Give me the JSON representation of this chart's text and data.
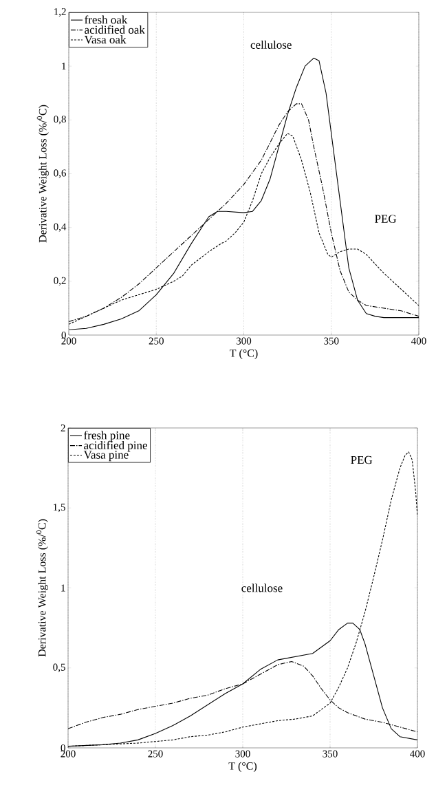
{
  "chart_data": [
    {
      "type": "line",
      "xlabel": "T (°C)",
      "ylabel": "Derivative Weight  Loss  (%/$^{0}$C)",
      "xlim": [
        200,
        400
      ],
      "ylim": [
        0,
        1.2
      ],
      "xticks": [
        200,
        250,
        300,
        350,
        400
      ],
      "yticks": [
        0,
        {
          "value": 0.2,
          "label": "0,2"
        },
        {
          "value": 0.4,
          "label": "0,4"
        },
        {
          "value": 0.6,
          "label": "0,6"
        },
        {
          "value": 0.8,
          "label": "0,8"
        },
        1,
        {
          "value": 1.2,
          "label": "1,2"
        }
      ],
      "grid": "x",
      "legend": "top left",
      "annotations": [
        "cellulose",
        "PEG"
      ],
      "series": [
        {
          "name": "fresh oak",
          "color": "#000000",
          "line_style": "solid",
          "x": [
            200,
            210,
            220,
            230,
            240,
            250,
            260,
            270,
            280,
            285,
            290,
            300,
            305,
            310,
            315,
            320,
            325,
            330,
            335,
            340,
            343,
            347,
            350,
            355,
            360,
            365,
            370,
            375,
            380,
            400
          ],
          "values": [
            0.02,
            0.025,
            0.04,
            0.06,
            0.09,
            0.15,
            0.23,
            0.34,
            0.44,
            0.46,
            0.46,
            0.455,
            0.46,
            0.5,
            0.58,
            0.7,
            0.82,
            0.92,
            1.0,
            1.03,
            1.02,
            0.9,
            0.75,
            0.5,
            0.25,
            0.13,
            0.08,
            0.07,
            0.065,
            0.065
          ]
        },
        {
          "name": "acidified oak",
          "color": "#000000",
          "line_style": "dashdot",
          "x": [
            200,
            210,
            220,
            230,
            240,
            250,
            260,
            270,
            280,
            290,
            300,
            310,
            320,
            325,
            330,
            333,
            337,
            340,
            345,
            350,
            355,
            360,
            365,
            370,
            380,
            390,
            400
          ],
          "values": [
            0.05,
            0.07,
            0.1,
            0.14,
            0.19,
            0.25,
            0.31,
            0.37,
            0.43,
            0.49,
            0.56,
            0.65,
            0.78,
            0.83,
            0.86,
            0.86,
            0.8,
            0.7,
            0.55,
            0.38,
            0.24,
            0.16,
            0.13,
            0.11,
            0.1,
            0.09,
            0.07
          ]
        },
        {
          "name": "Vasa oak",
          "color": "#000000",
          "line_style": "dashed",
          "x": [
            200,
            210,
            220,
            230,
            240,
            250,
            260,
            265,
            270,
            280,
            287,
            290,
            295,
            300,
            305,
            310,
            315,
            320,
            325,
            328,
            333,
            338,
            343,
            348,
            350,
            355,
            360,
            365,
            370,
            380,
            390,
            400
          ],
          "values": [
            0.04,
            0.07,
            0.1,
            0.13,
            0.15,
            0.17,
            0.2,
            0.22,
            0.26,
            0.31,
            0.34,
            0.35,
            0.38,
            0.42,
            0.5,
            0.6,
            0.66,
            0.71,
            0.75,
            0.74,
            0.65,
            0.53,
            0.38,
            0.3,
            0.29,
            0.31,
            0.32,
            0.32,
            0.3,
            0.23,
            0.17,
            0.11
          ]
        }
      ]
    },
    {
      "type": "line",
      "xlabel": "T (°C)",
      "ylabel": "Derivative Weight  Loss  (%/$^{0}$C)",
      "xlim": [
        200,
        400
      ],
      "ylim": [
        0,
        2
      ],
      "xticks": [
        200,
        250,
        300,
        350,
        400
      ],
      "yticks": [
        0,
        {
          "value": 0.5,
          "label": "0,5"
        },
        1,
        {
          "value": 1.5,
          "label": "1,5"
        },
        2
      ],
      "grid": "x",
      "legend": "top left",
      "annotations": [
        "cellulose",
        "PEG"
      ],
      "series": [
        {
          "name": "fresh pine",
          "color": "#000000",
          "line_style": "solid",
          "x": [
            200,
            220,
            230,
            240,
            250,
            260,
            270,
            280,
            290,
            300,
            310,
            320,
            330,
            340,
            350,
            355,
            360,
            363,
            367,
            370,
            375,
            380,
            385,
            390,
            400
          ],
          "values": [
            0.01,
            0.02,
            0.03,
            0.05,
            0.09,
            0.14,
            0.2,
            0.27,
            0.34,
            0.4,
            0.49,
            0.55,
            0.57,
            0.59,
            0.67,
            0.74,
            0.78,
            0.78,
            0.74,
            0.65,
            0.45,
            0.25,
            0.12,
            0.07,
            0.05
          ]
        },
        {
          "name": "acidified pine",
          "color": "#000000",
          "line_style": "dashdot",
          "x": [
            200,
            210,
            220,
            230,
            240,
            250,
            260,
            270,
            280,
            290,
            300,
            310,
            320,
            328,
            335,
            340,
            345,
            350,
            355,
            360,
            370,
            380,
            390,
            400
          ],
          "values": [
            0.12,
            0.16,
            0.19,
            0.21,
            0.24,
            0.26,
            0.28,
            0.31,
            0.33,
            0.37,
            0.4,
            0.46,
            0.52,
            0.54,
            0.51,
            0.45,
            0.37,
            0.3,
            0.25,
            0.22,
            0.18,
            0.16,
            0.13,
            0.1
          ]
        },
        {
          "name": "Vasa pine",
          "color": "#000000",
          "line_style": "dashed",
          "x": [
            200,
            220,
            240,
            250,
            260,
            270,
            280,
            290,
            300,
            310,
            320,
            330,
            340,
            345,
            350,
            355,
            360,
            365,
            370,
            375,
            380,
            385,
            390,
            393,
            395,
            397,
            399,
            400
          ],
          "values": [
            0.01,
            0.02,
            0.03,
            0.04,
            0.05,
            0.07,
            0.08,
            0.1,
            0.13,
            0.15,
            0.17,
            0.18,
            0.2,
            0.24,
            0.28,
            0.38,
            0.5,
            0.66,
            0.85,
            1.07,
            1.3,
            1.55,
            1.75,
            1.83,
            1.85,
            1.8,
            1.6,
            1.45
          ]
        }
      ]
    }
  ]
}
